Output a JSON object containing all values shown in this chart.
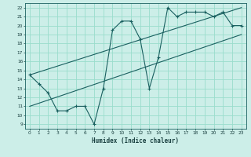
{
  "title": "",
  "xlabel": "Humidex (Indice chaleur)",
  "bg_color": "#cceee8",
  "grid_color": "#99ddcc",
  "line_color": "#1a6060",
  "xlim": [
    -0.5,
    23.5
  ],
  "ylim": [
    8.5,
    22.5
  ],
  "yticks": [
    9,
    10,
    11,
    12,
    13,
    14,
    15,
    16,
    17,
    18,
    19,
    20,
    21,
    22
  ],
  "xticks": [
    0,
    1,
    2,
    3,
    4,
    5,
    6,
    7,
    8,
    9,
    10,
    11,
    12,
    13,
    14,
    15,
    16,
    17,
    18,
    19,
    20,
    21,
    22,
    23
  ],
  "main_line_x": [
    0,
    1,
    2,
    3,
    4,
    5,
    6,
    7,
    8,
    9,
    10,
    11,
    12,
    13,
    14,
    15,
    16,
    17,
    18,
    19,
    20,
    21,
    22,
    23
  ],
  "main_line_y": [
    14.5,
    13.5,
    12.5,
    10.5,
    10.5,
    11,
    11,
    9,
    13,
    19.5,
    20.5,
    20.5,
    18.5,
    13,
    16.5,
    22,
    21,
    21.5,
    21.5,
    21.5,
    21,
    21.5,
    20,
    20
  ],
  "line3_x": [
    0,
    23
  ],
  "line3_y": [
    11,
    19
  ],
  "line4_x": [
    0,
    23
  ],
  "line4_y": [
    14.5,
    22
  ]
}
